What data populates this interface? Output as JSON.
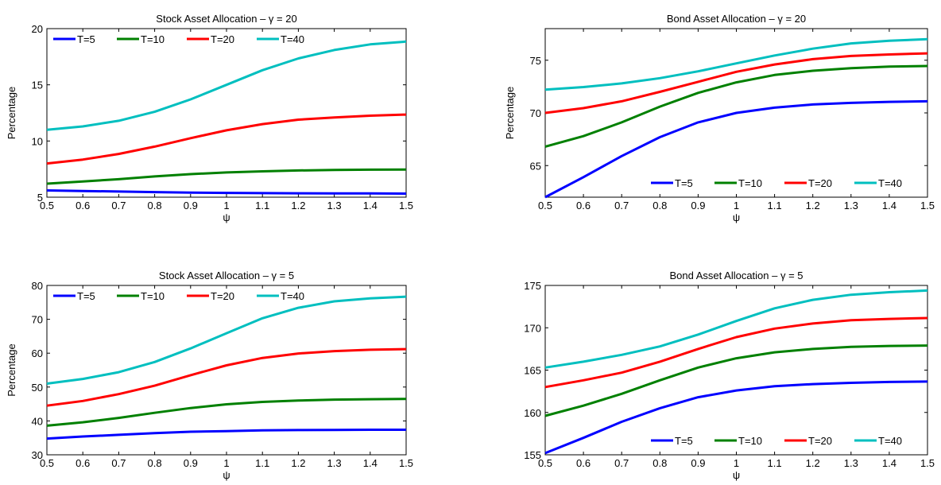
{
  "chart_data": [
    {
      "type": "line",
      "title": "Stock Asset Allocation – γ = 20",
      "xlabel": "ψ",
      "ylabel": "Percentage",
      "xlim": [
        0.5,
        1.5
      ],
      "ylim": [
        5,
        20
      ],
      "xticks": [
        "0.5",
        "0.6",
        "0.7",
        "0.8",
        "0.9",
        "1",
        "1.1",
        "1.2",
        "1.3",
        "1.4",
        "1.5"
      ],
      "yticks": [
        "5",
        "10",
        "15",
        "20"
      ],
      "legend_position": "top-left",
      "x": [
        0.5,
        0.6,
        0.7,
        0.8,
        0.9,
        1.0,
        1.1,
        1.2,
        1.3,
        1.4,
        1.5
      ],
      "series": [
        {
          "name": "T=5",
          "color": "#0000ff",
          "values": [
            5.6,
            5.55,
            5.5,
            5.45,
            5.4,
            5.38,
            5.36,
            5.35,
            5.34,
            5.33,
            5.32
          ]
        },
        {
          "name": "T=10",
          "color": "#008000",
          "values": [
            6.2,
            6.4,
            6.6,
            6.85,
            7.05,
            7.2,
            7.3,
            7.38,
            7.42,
            7.45,
            7.46
          ]
        },
        {
          "name": "T=20",
          "color": "#ff0000",
          "values": [
            8.0,
            8.35,
            8.85,
            9.5,
            10.25,
            10.95,
            11.5,
            11.9,
            12.1,
            12.25,
            12.35
          ]
        },
        {
          "name": "T=40",
          "color": "#00bfbf",
          "values": [
            11.0,
            11.3,
            11.8,
            12.6,
            13.7,
            15.0,
            16.3,
            17.35,
            18.1,
            18.6,
            18.85
          ]
        }
      ]
    },
    {
      "type": "line",
      "title": "Bond Asset Allocation – γ = 20",
      "xlabel": "ψ",
      "ylabel": "Percentage",
      "xlim": [
        0.5,
        1.5
      ],
      "ylim": [
        62,
        78
      ],
      "xticks": [
        "0.5",
        "0.6",
        "0.7",
        "0.8",
        "0.9",
        "1",
        "1.1",
        "1.2",
        "1.3",
        "1.4",
        "1.5"
      ],
      "yticks": [
        "65",
        "70",
        "75"
      ],
      "legend_position": "bottom-right",
      "x": [
        0.5,
        0.6,
        0.7,
        0.8,
        0.9,
        1.0,
        1.1,
        1.2,
        1.3,
        1.4,
        1.5
      ],
      "series": [
        {
          "name": "T=5",
          "color": "#0000ff",
          "values": [
            62.0,
            63.9,
            65.9,
            67.7,
            69.1,
            70.0,
            70.5,
            70.8,
            70.95,
            71.05,
            71.1
          ]
        },
        {
          "name": "T=10",
          "color": "#008000",
          "values": [
            66.8,
            67.8,
            69.1,
            70.6,
            71.9,
            72.9,
            73.6,
            74.0,
            74.25,
            74.4,
            74.45
          ]
        },
        {
          "name": "T=20",
          "color": "#ff0000",
          "values": [
            70.0,
            70.45,
            71.1,
            72.0,
            72.95,
            73.9,
            74.6,
            75.1,
            75.4,
            75.55,
            75.65
          ]
        },
        {
          "name": "T=40",
          "color": "#00bfbf",
          "values": [
            72.2,
            72.45,
            72.8,
            73.3,
            73.95,
            74.7,
            75.45,
            76.1,
            76.6,
            76.85,
            77.0
          ]
        }
      ]
    },
    {
      "type": "line",
      "title": "Stock Asset Allocation – γ = 5",
      "xlabel": "ψ",
      "ylabel": "Percentage",
      "xlim": [
        0.5,
        1.5
      ],
      "ylim": [
        30,
        80
      ],
      "xticks": [
        "0.5",
        "0.6",
        "0.7",
        "0.8",
        "0.9",
        "1",
        "1.1",
        "1.2",
        "1.3",
        "1.4",
        "1.5"
      ],
      "yticks": [
        "30",
        "40",
        "50",
        "60",
        "70",
        "80"
      ],
      "legend_position": "top-left",
      "x": [
        0.5,
        0.6,
        0.7,
        0.8,
        0.9,
        1.0,
        1.1,
        1.2,
        1.3,
        1.4,
        1.5
      ],
      "series": [
        {
          "name": "T=5",
          "color": "#0000ff",
          "values": [
            34.8,
            35.4,
            35.9,
            36.4,
            36.8,
            37.0,
            37.2,
            37.3,
            37.35,
            37.4,
            37.4
          ]
        },
        {
          "name": "T=10",
          "color": "#008000",
          "values": [
            38.6,
            39.6,
            40.9,
            42.4,
            43.8,
            44.9,
            45.6,
            46.0,
            46.3,
            46.4,
            46.5
          ]
        },
        {
          "name": "T=20",
          "color": "#ff0000",
          "values": [
            44.5,
            45.9,
            47.9,
            50.4,
            53.5,
            56.4,
            58.6,
            59.9,
            60.6,
            61.0,
            61.2
          ]
        },
        {
          "name": "T=40",
          "color": "#00bfbf",
          "values": [
            51.0,
            52.4,
            54.4,
            57.4,
            61.4,
            65.9,
            70.3,
            73.4,
            75.3,
            76.2,
            76.7
          ]
        }
      ]
    },
    {
      "type": "line",
      "title": "Bond Asset Allocation – γ = 5",
      "xlabel": "ψ",
      "ylabel": "",
      "xlim": [
        0.5,
        1.5
      ],
      "ylim": [
        155,
        175
      ],
      "xticks": [
        "0.5",
        "0.6",
        "0.7",
        "0.8",
        "0.9",
        "1",
        "1.1",
        "1.2",
        "1.3",
        "1.4",
        "1.5"
      ],
      "yticks": [
        "155",
        "160",
        "165",
        "170",
        "175"
      ],
      "legend_position": "bottom-right",
      "x": [
        0.5,
        0.6,
        0.7,
        0.8,
        0.9,
        1.0,
        1.1,
        1.2,
        1.3,
        1.4,
        1.5
      ],
      "series": [
        {
          "name": "T=5",
          "color": "#0000ff",
          "values": [
            155.2,
            157.0,
            158.9,
            160.5,
            161.8,
            162.6,
            163.1,
            163.35,
            163.5,
            163.6,
            163.65
          ]
        },
        {
          "name": "T=10",
          "color": "#008000",
          "values": [
            159.6,
            160.8,
            162.2,
            163.8,
            165.3,
            166.4,
            167.1,
            167.5,
            167.75,
            167.85,
            167.9
          ]
        },
        {
          "name": "T=20",
          "color": "#ff0000",
          "values": [
            163.0,
            163.8,
            164.7,
            166.0,
            167.5,
            168.9,
            169.9,
            170.5,
            170.9,
            171.05,
            171.15
          ]
        },
        {
          "name": "T=40",
          "color": "#00bfbf",
          "values": [
            165.3,
            166.0,
            166.8,
            167.8,
            169.2,
            170.8,
            172.3,
            173.3,
            173.9,
            174.2,
            174.4
          ]
        }
      ]
    }
  ]
}
